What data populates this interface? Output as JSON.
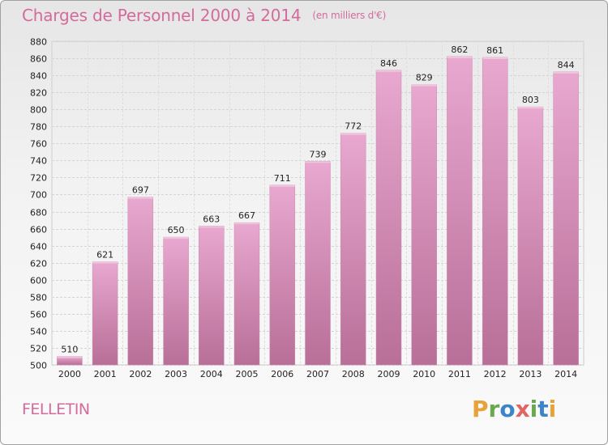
{
  "chart_data": {
    "type": "bar",
    "title": "Charges de Personnel 2000 à 2014",
    "subtitle": "(en milliers d'€)",
    "categories": [
      "2000",
      "2001",
      "2002",
      "2003",
      "2004",
      "2005",
      "2006",
      "2007",
      "2008",
      "2009",
      "2010",
      "2011",
      "2012",
      "2013",
      "2014"
    ],
    "values": [
      510,
      621,
      697,
      650,
      663,
      667,
      711,
      739,
      772,
      846,
      829,
      862,
      861,
      803,
      844
    ],
    "ylim": [
      500,
      880
    ],
    "ytick_step": 20,
    "grid": true,
    "bar_color": "#d68ab6",
    "title_color": "#d36b9c"
  },
  "footer": {
    "city": "FELLETIN",
    "logo": {
      "letters": [
        "P",
        "r",
        "o",
        "x",
        "i",
        "t",
        "i"
      ],
      "colors": [
        "#e8a23a",
        "#6aa84f",
        "#3d85c6",
        "#e06666",
        "#6aa84f",
        "#3d85c6",
        "#e8a23a"
      ]
    }
  }
}
